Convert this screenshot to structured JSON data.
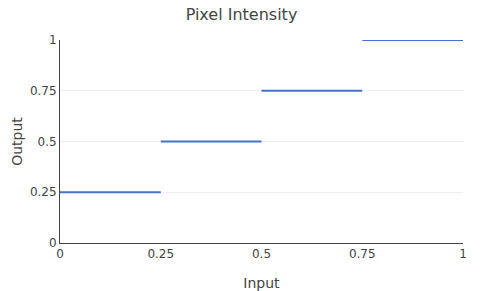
{
  "chart_data": {
    "type": "line",
    "title": "Pixel Intensity",
    "xlabel": "Input",
    "ylabel": "Output",
    "series": [
      {
        "x": [
          0,
          0.25
        ],
        "values": [
          0.25,
          0.25
        ]
      },
      {
        "x": [
          0.25,
          0.5
        ],
        "values": [
          0.5,
          0.5
        ]
      },
      {
        "x": [
          0.5,
          0.75
        ],
        "values": [
          0.75,
          0.75
        ]
      },
      {
        "x": [
          0.75,
          1.0
        ],
        "values": [
          1.0,
          1.0
        ]
      }
    ],
    "color": "#4472C4",
    "xlim": [
      0,
      1
    ],
    "ylim": [
      0,
      1
    ],
    "xticks": [
      0,
      0.25,
      0.5,
      0.75,
      1
    ],
    "yticks": [
      0,
      0.25,
      0.5,
      0.75,
      1
    ],
    "grid": true
  }
}
